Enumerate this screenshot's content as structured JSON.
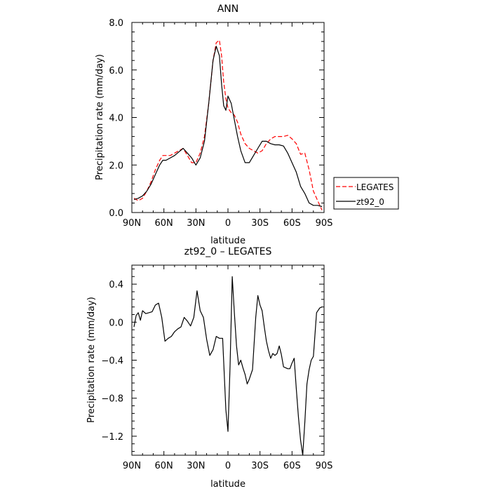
{
  "chart_data": [
    {
      "type": "line",
      "title": "ANN",
      "xlabel": "latitude",
      "ylabel": "Precipitation rate (mm/day)",
      "xlim": [
        90,
        -90
      ],
      "ylim": [
        0,
        8
      ],
      "x_tick_values": [
        90,
        60,
        30,
        0,
        -30,
        -60,
        -90
      ],
      "x_tick_labels": [
        "90N",
        "60N",
        "30N",
        "0",
        "30S",
        "60S",
        "90S"
      ],
      "y_tick_values": [
        0,
        2,
        4,
        6,
        8
      ],
      "y_tick_labels": [
        "0.0",
        "2.0",
        "4.0",
        "6.0",
        "8.0"
      ],
      "legend": [
        "LEGATES",
        "zt92_0"
      ],
      "legend_position": "right",
      "series": [
        {
          "name": "LEGATES",
          "color": "#ff0000",
          "dash": "dashed",
          "x": [
            88,
            84,
            80,
            76,
            72,
            68,
            64,
            61,
            58,
            54,
            50,
            46,
            42,
            38,
            34,
            30,
            26,
            22,
            18,
            14,
            11,
            8,
            6,
            4,
            2,
            0,
            -3,
            -6,
            -9,
            -12,
            -16,
            -20,
            -24,
            -28,
            -32,
            -36,
            -40,
            -44,
            -48,
            -52,
            -56,
            -60,
            -64,
            -68,
            -72,
            -76,
            -80,
            -84,
            -88
          ],
          "y": [
            0.6,
            0.5,
            0.6,
            0.9,
            1.3,
            1.8,
            2.2,
            2.4,
            2.4,
            2.4,
            2.5,
            2.6,
            2.7,
            2.4,
            2.1,
            2.1,
            2.5,
            3.2,
            4.6,
            6.4,
            7.15,
            7.25,
            6.6,
            5.5,
            4.8,
            4.4,
            4.2,
            4.1,
            3.8,
            3.3,
            2.9,
            2.7,
            2.6,
            2.5,
            2.6,
            2.9,
            3.1,
            3.2,
            3.2,
            3.2,
            3.25,
            3.1,
            2.9,
            2.45,
            2.5,
            1.8,
            0.9,
            0.5,
            0.1
          ]
        },
        {
          "name": "zt92_0",
          "color": "#000000",
          "dash": "solid",
          "x": [
            88,
            84,
            80,
            76,
            72,
            68,
            64,
            61,
            58,
            54,
            50,
            46,
            42,
            38,
            34,
            30,
            26,
            22,
            18,
            14,
            11,
            8,
            6,
            4,
            2,
            0,
            -3,
            -6,
            -9,
            -12,
            -16,
            -20,
            -24,
            -28,
            -32,
            -36,
            -40,
            -44,
            -48,
            -52,
            -56,
            -60,
            -64,
            -68,
            -72,
            -76,
            -80,
            -84,
            -88
          ],
          "y": [
            0.55,
            0.6,
            0.7,
            0.9,
            1.2,
            1.6,
            2.0,
            2.2,
            2.2,
            2.3,
            2.4,
            2.55,
            2.7,
            2.5,
            2.3,
            2.0,
            2.3,
            3.0,
            4.6,
            6.4,
            7.0,
            6.6,
            5.4,
            4.5,
            4.3,
            4.9,
            4.6,
            3.9,
            3.2,
            2.6,
            2.1,
            2.1,
            2.4,
            2.7,
            3.0,
            3.0,
            2.9,
            2.85,
            2.85,
            2.8,
            2.5,
            2.1,
            1.7,
            1.1,
            0.8,
            0.4,
            0.3,
            0.3,
            0.25
          ]
        }
      ]
    },
    {
      "type": "line",
      "title": "zt92_0 – LEGATES",
      "xlabel": "latitude",
      "ylabel": "Precipitation rate (mm/day)",
      "xlim": [
        90,
        -90
      ],
      "ylim": [
        -1.4,
        0.6
      ],
      "x_tick_values": [
        90,
        60,
        30,
        0,
        -30,
        -60,
        -90
      ],
      "x_tick_labels": [
        "90N",
        "60N",
        "30N",
        "0",
        "30S",
        "60S",
        "90S"
      ],
      "y_tick_values": [
        0.4,
        0,
        -0.4,
        -0.8,
        -1.2
      ],
      "y_tick_labels": [
        "0.4",
        "0.0",
        "−0.4",
        "−0.8",
        "−1.2"
      ],
      "series": [
        {
          "color": "#000000",
          "dash": "solid",
          "x": [
            88,
            86,
            84,
            82,
            80,
            77,
            74,
            71,
            68,
            65,
            62,
            59,
            56,
            53,
            50,
            47,
            44,
            41,
            38,
            35,
            32,
            29,
            26,
            23,
            20,
            17,
            14,
            11,
            8,
            5,
            2,
            0,
            -2,
            -4,
            -6,
            -8,
            -10,
            -12,
            -14,
            -16,
            -18,
            -20,
            -23,
            -26,
            -28,
            -30,
            -32,
            -34,
            -36,
            -38,
            -40,
            -42,
            -44,
            -46,
            -48,
            -50,
            -52,
            -54,
            -56,
            -58,
            -60,
            -62,
            -64,
            -66,
            -68,
            -70,
            -72,
            -74,
            -76,
            -78,
            -80,
            -83,
            -86,
            -88
          ],
          "y": [
            -0.05,
            0.07,
            0.1,
            0.02,
            0.12,
            0.09,
            0.1,
            0.11,
            0.18,
            0.2,
            0.05,
            -0.2,
            -0.17,
            -0.15,
            -0.1,
            -0.07,
            -0.05,
            0.05,
            0.01,
            -0.04,
            0.05,
            0.33,
            0.12,
            0.05,
            -0.18,
            -0.35,
            -0.29,
            -0.15,
            -0.17,
            -0.17,
            -0.92,
            -1.15,
            -0.46,
            0.48,
            0.1,
            -0.25,
            -0.45,
            -0.4,
            -0.48,
            -0.55,
            -0.65,
            -0.6,
            -0.5,
            0.05,
            0.28,
            0.18,
            0.12,
            -0.05,
            -0.2,
            -0.3,
            -0.38,
            -0.33,
            -0.35,
            -0.33,
            -0.25,
            -0.34,
            -0.47,
            -0.48,
            -0.49,
            -0.49,
            -0.43,
            -0.38,
            -0.7,
            -1.0,
            -1.24,
            -1.4,
            -1.05,
            -0.65,
            -0.5,
            -0.4,
            -0.36,
            0.1,
            0.15,
            0.16
          ]
        }
      ]
    }
  ]
}
